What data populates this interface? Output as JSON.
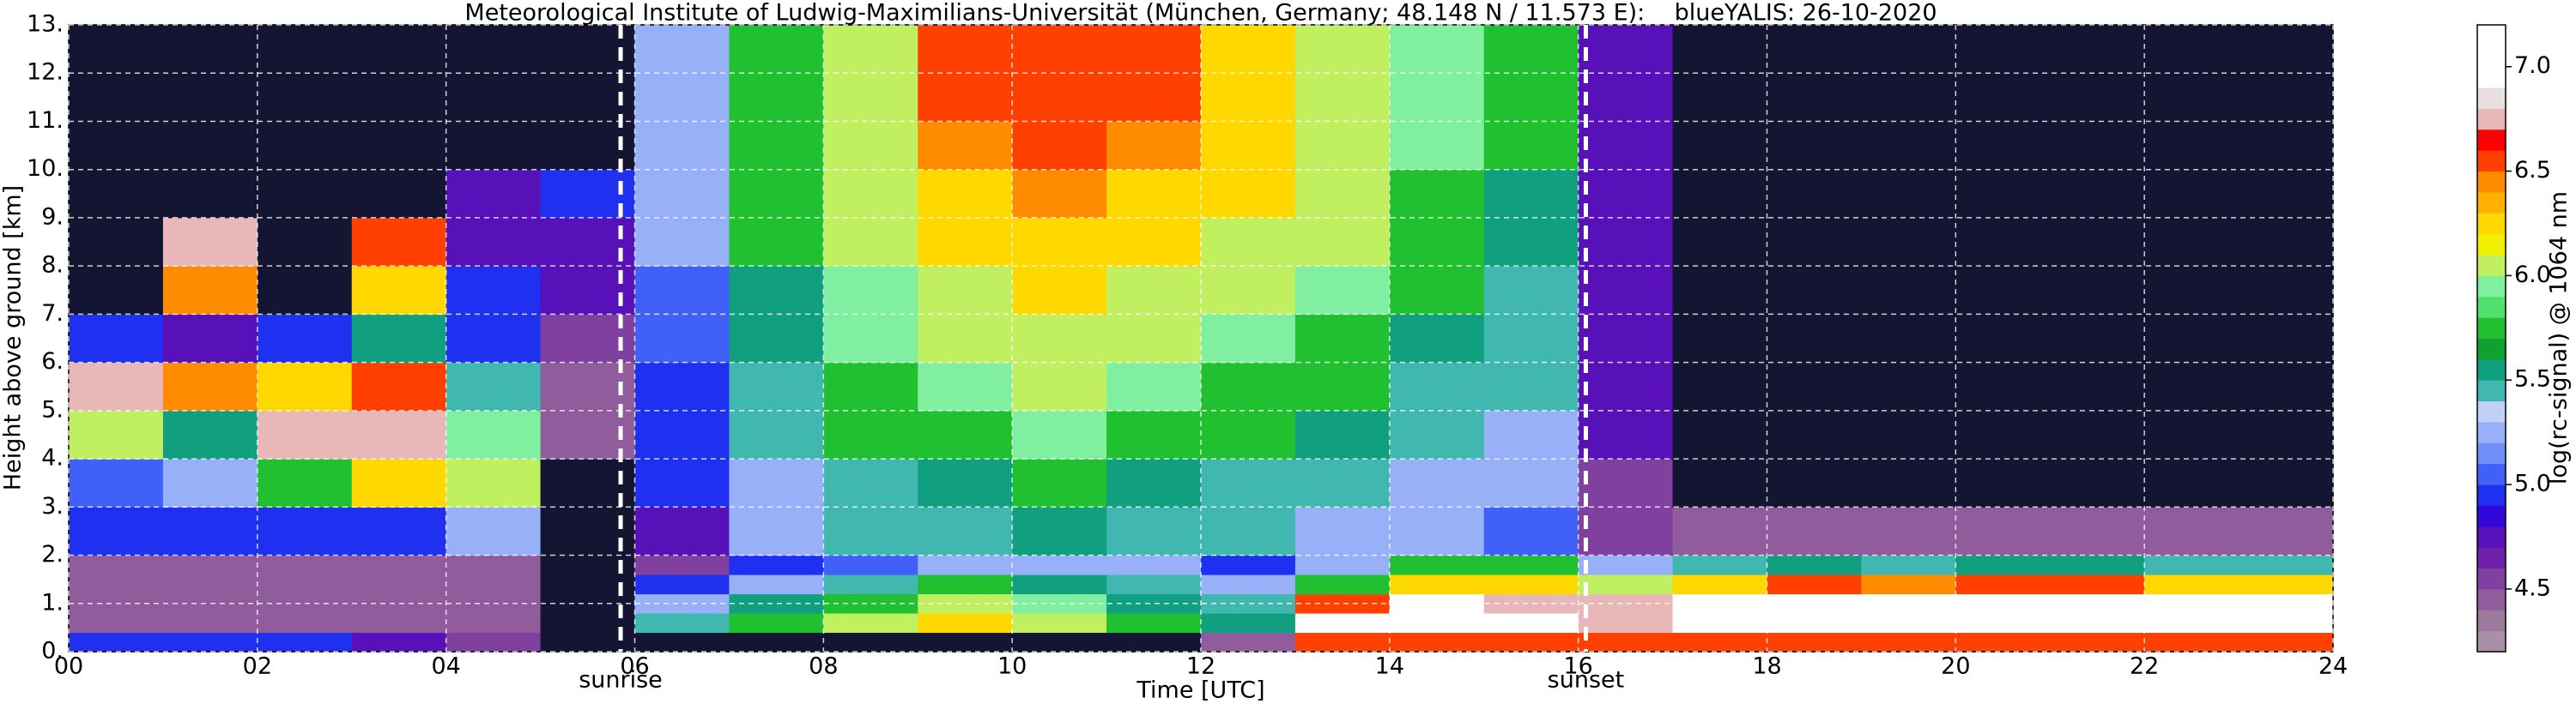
{
  "chart_data": {
    "type": "heatmap",
    "title": "Meteorological Institute of Ludwig-Maximilians-Universität (München, Germany; 48.148 N / 11.573 E):    blueYALIS: 26-10-2020",
    "x_label": "Time [UTC]",
    "y_label": "Height above ground [km]",
    "colorbar_label": "log(rc-signal) @ 1064 nm",
    "xlim": [
      0,
      24
    ],
    "xticks": [
      {
        "value": 0,
        "label": "00"
      },
      {
        "value": 2,
        "label": "02"
      },
      {
        "value": 4,
        "label": "04"
      },
      {
        "value": 6,
        "label": "06"
      },
      {
        "value": 8,
        "label": "08"
      },
      10,
      12,
      14,
      16,
      18,
      20,
      22,
      24
    ],
    "ylim": [
      0,
      13
    ],
    "yticks": [
      {
        "value": 0,
        "label": "0."
      },
      {
        "value": 1,
        "label": "1."
      },
      {
        "value": 2,
        "label": "2."
      },
      {
        "value": 3,
        "label": "3."
      },
      {
        "value": 4,
        "label": "4."
      },
      {
        "value": 5,
        "label": "5."
      },
      {
        "value": 6,
        "label": "6."
      },
      {
        "value": 7,
        "label": "7."
      },
      {
        "value": 8,
        "label": "8."
      },
      {
        "value": 9,
        "label": "9."
      },
      {
        "value": 10,
        "label": "10."
      },
      {
        "value": 11,
        "label": "11."
      },
      {
        "value": 12,
        "label": "12."
      },
      {
        "value": 13,
        "label": "13."
      }
    ],
    "grid": true,
    "zlim": [
      4.2,
      7.2
    ],
    "zticks": [
      4.5,
      {
        "value": 5,
        "label": "5.0"
      },
      5.5,
      {
        "value": 6,
        "label": "6.0"
      },
      6.5,
      {
        "value": 7,
        "label": "7.0"
      }
    ],
    "colormap": [
      "#a890a8",
      "#9c7a9c",
      "#905c9c",
      "#8040a0",
      "#7020a8",
      "#5810b8",
      "#3008d8",
      "#2030f0",
      "#4060f8",
      "#7090f8",
      "#98b0f8",
      "#c0d0f8",
      "#40b8b0",
      "#10a080",
      "#10a030",
      "#20c030",
      "#50e070",
      "#80f0a0",
      "#c0f060",
      "#f0f000",
      "#ffd800",
      "#ffb000",
      "#ff8c00",
      "#ff4000",
      "#ff0000",
      "#e8b8b8",
      "#e8e0e0",
      "#ffffff",
      "#ffffff",
      "#ffffff"
    ],
    "under_color": "#141433",
    "x_edges": [
      0,
      1,
      2,
      3,
      4,
      5,
      6,
      7,
      8,
      9,
      10,
      11,
      12,
      13,
      14,
      15,
      16,
      17,
      18,
      19,
      20,
      21,
      22,
      23,
      24
    ],
    "y_edges": [
      0,
      0.4,
      0.8,
      1.2,
      1.6,
      2,
      3,
      4,
      5,
      6,
      7,
      8,
      9,
      10,
      11,
      13
    ],
    "z": [
      [
        4.9,
        4.9,
        4.9,
        4.8,
        4.6,
        4.1,
        4.1,
        4.1,
        4.1,
        4.1,
        4.1,
        4.1,
        4.5,
        6.6,
        6.6,
        6.6,
        6.5,
        6.6,
        6.6,
        6.6,
        6.6,
        6.6,
        6.6,
        6.6
      ],
      [
        4.5,
        4.5,
        4.5,
        4.5,
        4.5,
        4.1,
        5.5,
        5.7,
        6.0,
        6.2,
        6.0,
        5.8,
        5.6,
        6.9,
        7.0,
        7.0,
        6.8,
        6.9,
        7.0,
        7.0,
        7.0,
        6.9,
        6.9,
        7.0
      ],
      [
        4.4,
        4.4,
        4.4,
        4.4,
        4.4,
        4.1,
        5.3,
        5.6,
        5.8,
        6.0,
        5.9,
        5.6,
        5.5,
        6.6,
        6.9,
        6.8,
        6.7,
        7.0,
        7.0,
        7.0,
        7.0,
        7.0,
        7.0,
        6.9
      ],
      [
        4.4,
        4.4,
        4.4,
        4.4,
        4.4,
        4.1,
        4.9,
        5.3,
        5.5,
        5.7,
        5.6,
        5.4,
        5.2,
        5.8,
        6.3,
        6.2,
        6.0,
        6.3,
        6.5,
        6.4,
        6.5,
        6.5,
        6.3,
        6.2
      ],
      [
        4.5,
        4.5,
        4.5,
        4.5,
        4.5,
        4.1,
        4.6,
        4.9,
        5.1,
        5.2,
        5.3,
        5.2,
        5.0,
        5.3,
        5.7,
        5.8,
        5.3,
        5.4,
        5.6,
        5.5,
        5.6,
        5.6,
        5.5,
        5.4
      ],
      [
        4.9,
        4.9,
        4.9,
        4.9,
        5.3,
        4.1,
        4.8,
        5.2,
        5.4,
        5.5,
        5.6,
        5.5,
        5.4,
        5.3,
        5.2,
        5.1,
        4.6,
        4.5,
        4.5,
        4.5,
        4.5,
        4.5,
        4.5,
        4.5
      ],
      [
        5.1,
        5.2,
        5.8,
        6.3,
        6.1,
        4.1,
        4.9,
        5.3,
        5.5,
        5.6,
        5.7,
        5.6,
        5.5,
        5.4,
        5.3,
        5.2,
        4.6,
        4.1,
        4.1,
        4.1,
        4.1,
        4.1,
        4.1,
        4.1
      ],
      [
        6.0,
        5.6,
        6.7,
        6.8,
        5.9,
        4.4,
        5.0,
        5.4,
        5.7,
        5.8,
        5.9,
        5.8,
        5.7,
        5.6,
        5.4,
        5.3,
        4.7,
        4.1,
        4.1,
        4.1,
        4.1,
        4.1,
        4.1,
        4.1
      ],
      [
        6.8,
        6.4,
        6.3,
        6.6,
        5.4,
        4.5,
        5.0,
        5.5,
        5.8,
        5.9,
        6.0,
        5.9,
        5.8,
        5.7,
        5.5,
        5.4,
        4.7,
        4.1,
        4.1,
        4.1,
        4.1,
        4.1,
        4.1,
        4.1
      ],
      [
        4.9,
        4.8,
        5.0,
        5.6,
        5.0,
        4.6,
        5.1,
        5.6,
        5.9,
        6.0,
        6.1,
        6.0,
        5.9,
        5.8,
        5.6,
        5.5,
        4.8,
        4.1,
        4.1,
        4.1,
        4.1,
        4.1,
        4.1,
        4.1
      ],
      [
        4.1,
        6.4,
        4.1,
        6.2,
        5.0,
        4.7,
        5.1,
        5.6,
        5.9,
        6.1,
        6.2,
        6.1,
        6.0,
        5.9,
        5.7,
        5.5,
        4.8,
        4.1,
        4.1,
        4.1,
        4.1,
        4.1,
        4.1,
        4.1
      ],
      [
        4.1,
        6.7,
        4.1,
        6.6,
        4.8,
        4.7,
        5.2,
        5.7,
        6.0,
        6.2,
        6.3,
        6.2,
        6.1,
        6.0,
        5.8,
        5.6,
        4.8,
        4.1,
        4.1,
        4.1,
        4.1,
        4.1,
        4.1,
        4.1
      ],
      [
        4.1,
        4.1,
        4.1,
        4.1,
        4.8,
        4.9,
        5.2,
        5.7,
        6.0,
        6.3,
        6.4,
        6.3,
        6.2,
        6.0,
        5.8,
        5.6,
        4.8,
        4.1,
        4.1,
        4.1,
        4.1,
        4.1,
        4.1,
        4.1
      ],
      [
        4.1,
        4.1,
        4.1,
        4.1,
        4.1,
        4.1,
        5.2,
        5.8,
        6.1,
        6.4,
        6.5,
        6.4,
        6.2,
        6.1,
        5.9,
        5.7,
        4.8,
        4.1,
        4.1,
        4.1,
        4.1,
        4.1,
        4.1,
        4.1
      ],
      [
        4.1,
        4.1,
        4.1,
        4.1,
        4.1,
        4.1,
        5.3,
        5.8,
        6.1,
        6.5,
        6.6,
        6.5,
        6.3,
        6.1,
        5.9,
        5.7,
        4.8,
        4.1,
        4.1,
        4.1,
        4.1,
        4.1,
        4.1,
        4.1
      ]
    ],
    "annotations": [
      {
        "text": "sunrise",
        "x": 5.85
      },
      {
        "text": "sunset",
        "x": 16.08
      }
    ]
  }
}
